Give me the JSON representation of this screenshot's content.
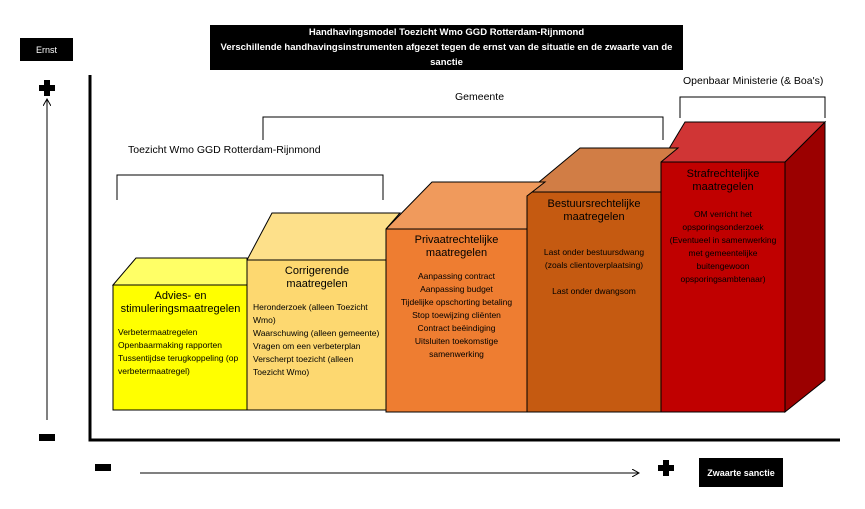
{
  "header": {
    "title": "Handhavingsmodel Toezicht Wmo GGD Rotterdam-Rijnmond",
    "subtitle": "Verschillende handhavingsinstrumenten afgezet tegen de ernst van de situatie en de zwaarte van de sanctie"
  },
  "axes": {
    "y_label": "Ernst",
    "x_label": "Zwaarte sanctie",
    "plus_icon": "plus-icon",
    "minus_icon": "minus-icon"
  },
  "groups": {
    "toezicht": "Toezicht Wmo GGD Rotterdam-Rijnmond",
    "gemeente": "Gemeente",
    "om": "Openbaar Ministerie (& Boa's)"
  },
  "steps": [
    {
      "title": "Advies- en stimuleringsmaatregelen",
      "items": [
        "Verbetermaatregelen",
        "Openbaarmaking rapporten",
        "Tussentijdse terugkoppeling (op verbetermaatregel)"
      ],
      "color": "#ffff00"
    },
    {
      "title": "Corrigerende maatregelen",
      "items": [
        "Heronderzoek (alleen Toezicht Wmo)",
        "Waarschuwing (alleen gemeente)",
        "Vragen om een verbeterplan",
        "Verscherpt toezicht (alleen Toezicht Wmo)"
      ],
      "color": "#fdd870"
    },
    {
      "title": "Privaatrechtelijke maatregelen",
      "items": [
        "Aanpassing contract",
        "Aanpassing budget",
        "Tijdelijke opschorting betaling",
        "Stop toewijzing cliënten",
        "Contract beëindiging",
        "Uitsluiten toekomstige samenwerking"
      ],
      "color": "#ee7d31"
    },
    {
      "title": "Bestuursrechtelijke maatregelen",
      "items": [
        "Last onder bestuursdwang (zoals clientoverplaatsing)",
        "",
        "Last onder dwangsom"
      ],
      "color": "#c55a11"
    },
    {
      "title": "Strafrechtelijke maatregelen",
      "items": [
        "OM verricht het opsporingsonderzoek",
        "(Eventueel in samenwerking met gemeentelijke buitengewoon opsporingsambtenaar)"
      ],
      "color": "#c00000"
    }
  ]
}
